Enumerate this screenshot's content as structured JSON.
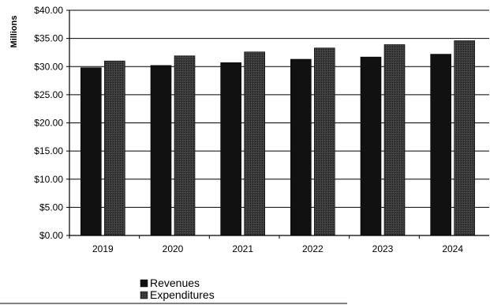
{
  "chart_data": {
    "type": "bar",
    "title": "",
    "xlabel": "",
    "ylabel": "Millions",
    "categories": [
      "2019",
      "2020",
      "2021",
      "2022",
      "2023",
      "2024"
    ],
    "series": [
      {
        "name": "Revenues",
        "values": [
          29.8,
          30.2,
          30.7,
          31.3,
          31.7,
          32.2
        ],
        "color": "#111111"
      },
      {
        "name": "Expenditures",
        "values": [
          31.0,
          31.9,
          32.6,
          33.3,
          33.9,
          34.6
        ],
        "color": "#2b2b2b"
      }
    ],
    "yticks": [
      "$0.00",
      "$5.00",
      "$10.00",
      "$15.00",
      "$20.00",
      "$25.00",
      "$30.00",
      "$35.00",
      "$40.00"
    ],
    "ylim": [
      0,
      40
    ],
    "grid": true,
    "legend": "bottom-center"
  }
}
